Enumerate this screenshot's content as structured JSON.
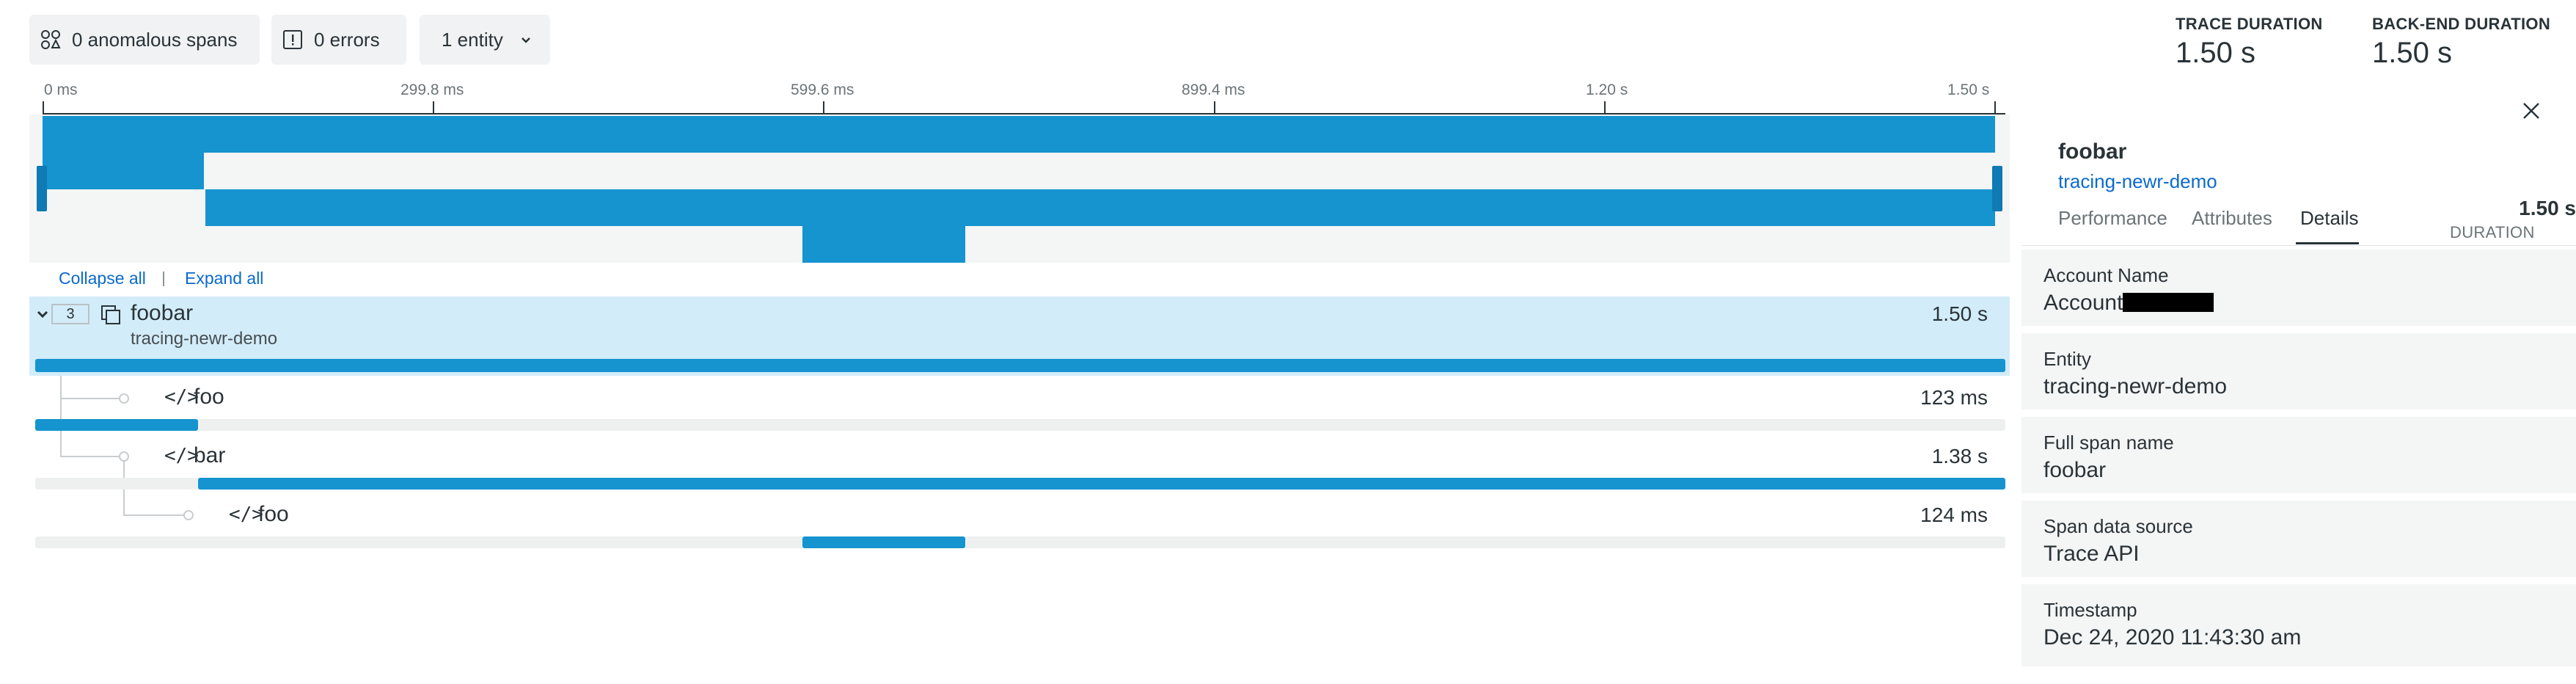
{
  "toolbar": {
    "anomalous_spans": "0 anomalous spans",
    "errors": "0 errors",
    "entity_filter": "1 entity"
  },
  "timeline": {
    "ticks": [
      "0 ms",
      "299.8 ms",
      "599.6 ms",
      "899.4 ms",
      "1.20 s",
      "1.50 s"
    ],
    "collapse_all": "Collapse all",
    "expand_all": "Expand all"
  },
  "spans": {
    "root": {
      "child_count": "3",
      "name": "foobar",
      "entity": "tracing-newr-demo",
      "duration": "1.50 s"
    },
    "children": [
      {
        "name": "foo",
        "duration": "123 ms"
      },
      {
        "name": "bar",
        "duration": "1.38 s"
      },
      {
        "name": "foo",
        "duration": "124 ms"
      }
    ]
  },
  "summary": {
    "trace_duration_label": "TRACE DURATION",
    "trace_duration": "1.50 s",
    "backend_duration_label": "BACK-END DURATION",
    "backend_duration": "1.50 s"
  },
  "details_panel": {
    "title": "foobar",
    "entity_link": "tracing-newr-demo",
    "tabs": [
      "Performance",
      "Attributes",
      "Details"
    ],
    "active_tab": "Details",
    "duration_value": "1.50 s",
    "duration_label": "DURATION",
    "fields": [
      {
        "key": "Account Name",
        "value": "Account"
      },
      {
        "key": "Entity",
        "value": "tracing-newr-demo"
      },
      {
        "key": "Full span name",
        "value": "foobar"
      },
      {
        "key": "Span data source",
        "value": "Trace API"
      },
      {
        "key": "Timestamp",
        "value": "Dec 24, 2020 11:43:30 am"
      }
    ]
  },
  "colors": {
    "span_bar": "#1594cf",
    "selected_row": "#d3ecf9",
    "link": "#0b6acb"
  },
  "icons": {
    "anomalous": "anomalous-spans-icon",
    "errors": "error-icon",
    "dropdown": "chevron-down-icon",
    "close": "close-icon",
    "entity": "entity-icon",
    "code": "code-icon"
  }
}
